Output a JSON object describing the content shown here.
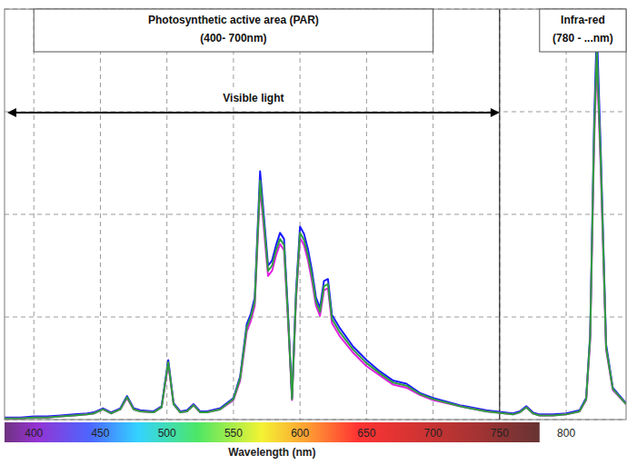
{
  "chart_data": {
    "type": "line",
    "x_label": "Wavelength (nm)",
    "x": [
      378,
      390,
      400,
      410,
      420,
      430,
      440,
      445,
      452,
      458,
      465,
      470,
      475,
      480,
      490,
      496,
      501,
      505,
      510,
      515,
      520,
      525,
      530,
      540,
      550,
      555,
      560,
      563,
      566,
      570,
      573,
      576,
      579,
      582,
      585,
      588,
      591,
      594,
      597,
      600,
      603,
      606,
      609,
      612,
      615,
      618,
      621,
      624,
      630,
      640,
      650,
      660,
      670,
      680,
      690,
      700,
      720,
      740,
      760,
      765,
      770,
      775,
      780,
      790,
      800,
      810,
      815,
      818,
      821,
      823,
      826,
      830,
      835,
      845
    ],
    "series": [
      {
        "color": "#1a1aff",
        "values": [
          0.02,
          0.02,
          0.03,
          0.03,
          0.04,
          0.05,
          0.06,
          0.07,
          0.11,
          0.07,
          0.11,
          0.23,
          0.11,
          0.09,
          0.08,
          0.13,
          0.58,
          0.16,
          0.08,
          0.09,
          0.15,
          0.08,
          0.08,
          0.11,
          0.21,
          0.42,
          0.93,
          1.03,
          1.19,
          2.42,
          1.96,
          1.5,
          1.55,
          1.7,
          1.82,
          1.76,
          1.04,
          0.21,
          1.24,
          1.88,
          1.81,
          1.66,
          1.45,
          1.19,
          1.09,
          1.35,
          1.37,
          1.02,
          0.89,
          0.71,
          0.58,
          0.47,
          0.38,
          0.35,
          0.26,
          0.21,
          0.14,
          0.09,
          0.06,
          0.08,
          0.13,
          0.07,
          0.05,
          0.05,
          0.06,
          0.09,
          0.21,
          0.83,
          2.9,
          3.82,
          2.6,
          0.73,
          0.31,
          0.16
        ]
      },
      {
        "color": "#e020e0",
        "values": [
          0.01,
          0.01,
          0.02,
          0.02,
          0.03,
          0.04,
          0.05,
          0.06,
          0.1,
          0.06,
          0.1,
          0.21,
          0.1,
          0.08,
          0.07,
          0.12,
          0.54,
          0.15,
          0.07,
          0.08,
          0.14,
          0.07,
          0.07,
          0.1,
          0.19,
          0.38,
          0.86,
          0.96,
          1.11,
          2.27,
          1.84,
          1.4,
          1.45,
          1.6,
          1.71,
          1.65,
          0.97,
          0.19,
          1.16,
          1.77,
          1.7,
          1.55,
          1.35,
          1.11,
          1.01,
          1.26,
          1.28,
          0.94,
          0.81,
          0.65,
          0.52,
          0.43,
          0.34,
          0.31,
          0.24,
          0.19,
          0.13,
          0.08,
          0.05,
          0.07,
          0.12,
          0.06,
          0.04,
          0.04,
          0.05,
          0.08,
          0.19,
          0.77,
          2.7,
          3.5,
          2.42,
          0.68,
          0.29,
          0.15
        ]
      },
      {
        "color": "#2e9e3e",
        "values": [
          0.01,
          0.01,
          0.02,
          0.02,
          0.03,
          0.04,
          0.05,
          0.06,
          0.1,
          0.06,
          0.1,
          0.22,
          0.1,
          0.08,
          0.07,
          0.12,
          0.56,
          0.15,
          0.07,
          0.08,
          0.14,
          0.07,
          0.07,
          0.1,
          0.2,
          0.4,
          0.9,
          1.0,
          1.15,
          2.33,
          1.9,
          1.45,
          1.5,
          1.65,
          1.76,
          1.7,
          1.0,
          0.2,
          1.2,
          1.82,
          1.75,
          1.6,
          1.4,
          1.15,
          1.05,
          1.3,
          1.32,
          0.98,
          0.85,
          0.68,
          0.55,
          0.45,
          0.36,
          0.33,
          0.25,
          0.2,
          0.13,
          0.08,
          0.05,
          0.07,
          0.12,
          0.06,
          0.04,
          0.04,
          0.05,
          0.08,
          0.2,
          0.8,
          2.8,
          3.6,
          2.5,
          0.7,
          0.3,
          0.15
        ]
      }
    ],
    "xlim": [
      378,
      845
    ],
    "xticks": [
      400,
      450,
      500,
      550,
      600,
      650,
      700,
      750,
      800
    ],
    "ylim": [
      0,
      4
    ],
    "yticks": [
      0,
      1,
      2,
      3,
      4
    ],
    "grid": true,
    "tick_labels": "x",
    "annotations": [
      {
        "title": "Photosynthetic active area (PAR)",
        "subtitle": "(400- 700nm)",
        "range": [
          400,
          700
        ]
      },
      {
        "text": "Visible light",
        "range": [
          380,
          750
        ]
      },
      {
        "title": "Infra-red",
        "subtitle": "(780 - ...nm)",
        "range": [
          780,
          845
        ]
      }
    ]
  }
}
